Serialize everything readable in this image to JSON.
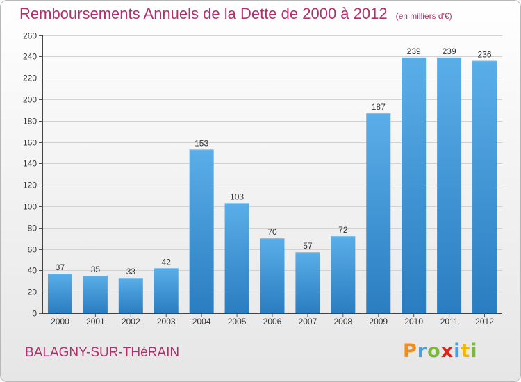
{
  "header": {
    "title": "Remboursements Annuels de la Dette de 2000 à 2012",
    "unit": "(en milliers d'€)"
  },
  "footer": {
    "commune": "BALAGNY-SUR-THéRAIN",
    "brand": "Proxiti"
  },
  "colors": {
    "title": "#b1306b",
    "bar_top": "#5aaee8",
    "bar_bottom": "#2a7dc0",
    "logo": [
      "#f28c1c",
      "#4a9fdc",
      "#79b936",
      "#e2231a",
      "#4a9fdc",
      "#f2b500",
      "#79b936"
    ]
  },
  "chart_data": {
    "type": "bar",
    "categories": [
      "2000",
      "2001",
      "2002",
      "2003",
      "2004",
      "2005",
      "2006",
      "2007",
      "2008",
      "2009",
      "2010",
      "2011",
      "2012"
    ],
    "values": [
      37,
      35,
      33,
      42,
      153,
      103,
      70,
      57,
      72,
      187,
      239,
      239,
      236
    ],
    "ylim": [
      0,
      260
    ],
    "yticks": [
      0,
      20,
      40,
      60,
      80,
      100,
      120,
      140,
      160,
      180,
      200,
      220,
      240,
      260
    ],
    "grid": true,
    "data_labels": true
  }
}
